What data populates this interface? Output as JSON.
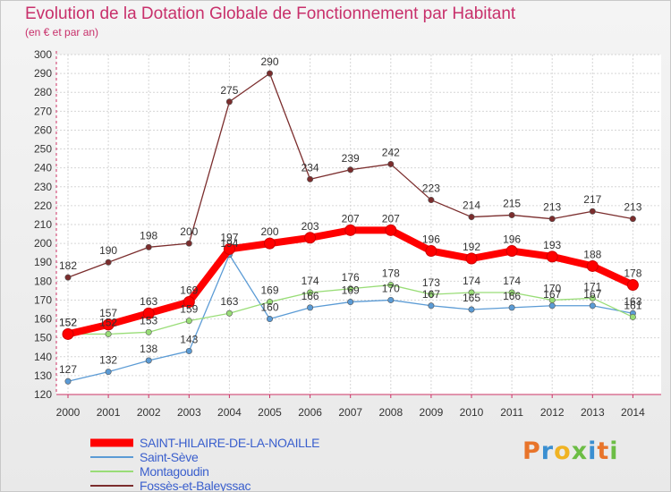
{
  "chart_data": {
    "type": "line",
    "title": "Evolution de la Dotation Globale de Fonctionnement par Habitant",
    "subtitle": "(en € et par an)",
    "xlabel": "",
    "ylabel": "",
    "ylim": [
      120,
      300
    ],
    "ystep": 10,
    "grid": true,
    "categories": [
      "2000",
      "2001",
      "2002",
      "2003",
      "2004",
      "2005",
      "2006",
      "2007",
      "2008",
      "2009",
      "2010",
      "2011",
      "2012",
      "2013",
      "2014"
    ],
    "series": [
      {
        "name": "SAINT-HILAIRE-DE-LA-NOAILLE",
        "color": "#ff0000",
        "highlight": true,
        "values": [
          152,
          157,
          163,
          169,
          197,
          200,
          203,
          207,
          207,
          196,
          192,
          196,
          193,
          188,
          178
        ]
      },
      {
        "name": "Saint-Sève",
        "color": "#5b9bd5",
        "highlight": false,
        "values": [
          127,
          132,
          138,
          143,
          194,
          160,
          166,
          169,
          170,
          167,
          165,
          166,
          167,
          167,
          163
        ]
      },
      {
        "name": "Montagoudin",
        "color": "#99dd77",
        "highlight": false,
        "values": [
          152,
          152,
          153,
          159,
          163,
          169,
          174,
          176,
          178,
          173,
          174,
          174,
          170,
          171,
          161
        ]
      },
      {
        "name": "Fossès-et-Baleyssac",
        "color": "#7b2d2d",
        "highlight": false,
        "values": [
          182,
          190,
          198,
          200,
          275,
          290,
          234,
          239,
          242,
          223,
          214,
          215,
          213,
          217,
          213
        ]
      }
    ]
  },
  "branding": {
    "logo_text": "Proxiti",
    "letters": [
      {
        "ch": "P",
        "color": "#e8742a"
      },
      {
        "ch": "r",
        "color": "#3a8fd1"
      },
      {
        "ch": "o",
        "color": "#f0b323"
      },
      {
        "ch": "x",
        "color": "#6cbd45"
      },
      {
        "ch": "i",
        "color": "#3a8fd1"
      },
      {
        "ch": "t",
        "color": "#e8742a"
      },
      {
        "ch": "i",
        "color": "#6cbd45"
      }
    ]
  }
}
